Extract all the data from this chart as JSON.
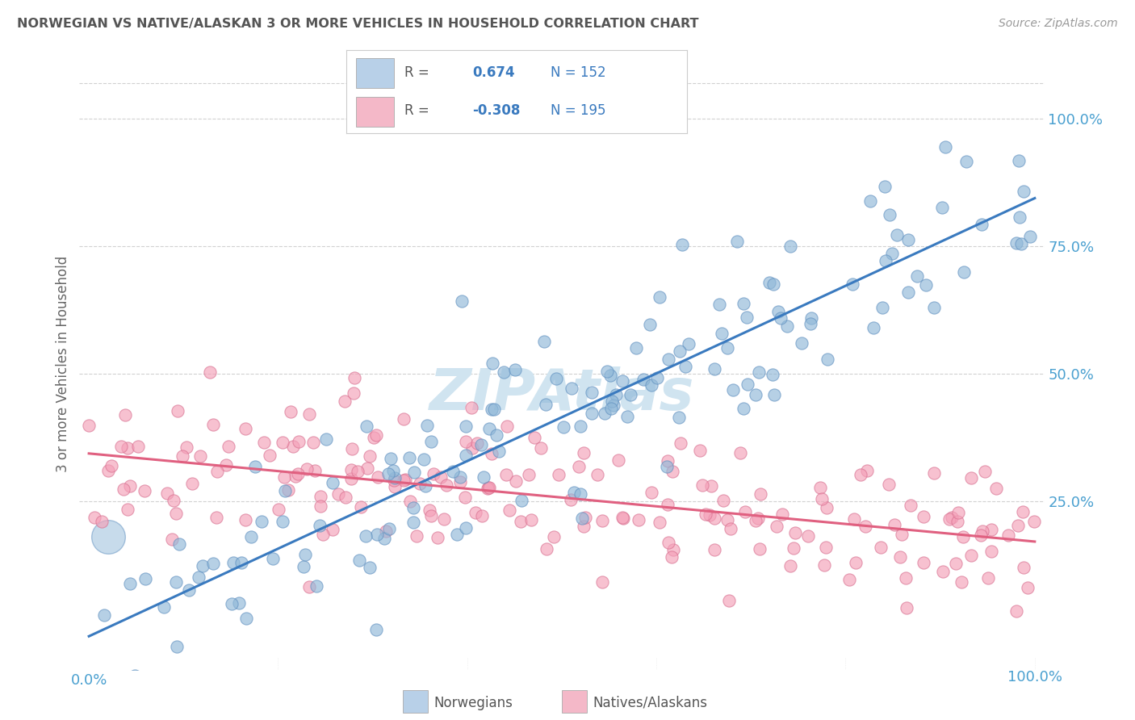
{
  "title": "NORWEGIAN VS NATIVE/ALASKAN 3 OR MORE VEHICLES IN HOUSEHOLD CORRELATION CHART",
  "source": "Source: ZipAtlas.com",
  "ylabel": "3 or more Vehicles in Household",
  "watermark": "ZIPAtlas",
  "r_norwegian": 0.674,
  "n_norwegian": 152,
  "r_native": -0.308,
  "n_native": 195,
  "blue_legend_color": "#b8d0e8",
  "pink_legend_color": "#f4b8c8",
  "blue_line_color": "#3a7abf",
  "pink_line_color": "#e06080",
  "blue_dot_facecolor": "#90b8d8",
  "blue_dot_edgecolor": "#6090c0",
  "pink_dot_facecolor": "#f4a0b8",
  "pink_dot_edgecolor": "#d87090",
  "bg_color": "#ffffff",
  "grid_color": "#cccccc",
  "title_color": "#555555",
  "axis_label_color": "#4aa0d0",
  "legend_r_color": "#3a7abf",
  "watermark_color": "#d0e4f0",
  "source_color": "#999999"
}
